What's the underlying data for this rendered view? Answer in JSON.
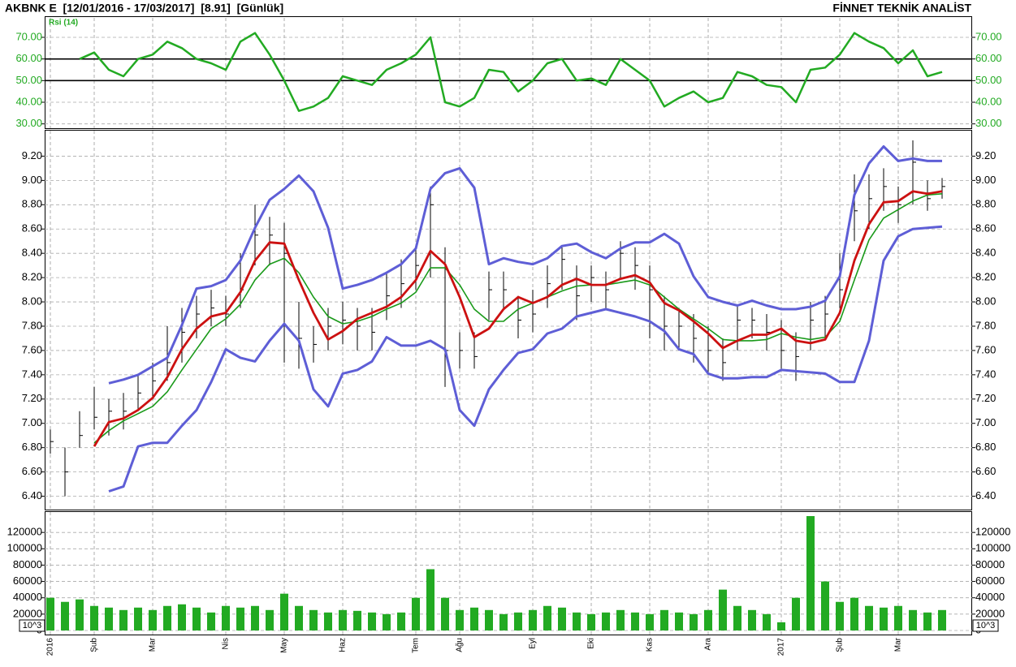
{
  "header": {
    "title": "AKBNK E  [12/01/2016 - 17/03/2017]  [8.91]  [Günlük]",
    "brand": "FİNNET TEKNİK ANALİST"
  },
  "chart_data": [
    {
      "type": "line",
      "annotation": "Rsi (14)",
      "tick_color": "#22aa22",
      "series": [
        {
          "color": "#22aa22",
          "values": [
            null,
            null,
            60,
            63,
            55,
            52,
            60,
            62,
            68,
            65,
            60,
            58,
            55,
            68,
            72,
            62,
            50,
            36,
            38,
            42,
            52,
            50,
            48,
            55,
            58,
            62,
            70,
            40,
            38,
            42,
            55,
            54,
            45,
            50,
            58,
            60,
            50,
            51,
            48,
            60,
            55,
            50,
            38,
            42,
            45,
            40,
            42,
            54,
            52,
            48,
            47,
            40,
            55,
            56,
            62,
            72,
            68,
            65,
            58,
            64,
            52,
            54
          ]
        }
      ],
      "levels": [
        60,
        50
      ],
      "ylim": [
        28,
        79
      ],
      "yticks": [
        {
          "value": 30,
          "label": "30.00"
        },
        {
          "value": 40,
          "label": "40.00"
        },
        {
          "value": 50,
          "label": "50.00"
        },
        {
          "value": 60,
          "label": "60.00"
        },
        {
          "value": 70,
          "label": "70.00"
        }
      ],
      "grid": true
    },
    {
      "type": "hlc",
      "tick_color": "#000000",
      "bar_color": "#000000",
      "high": [
        6.95,
        6.8,
        7.1,
        7.3,
        7.2,
        7.25,
        7.4,
        7.5,
        7.8,
        7.95,
        8.05,
        8.1,
        8.05,
        8.4,
        8.8,
        8.7,
        8.65,
        8.0,
        7.8,
        7.95,
        8.0,
        7.95,
        7.95,
        8.25,
        8.35,
        8.45,
        8.95,
        8.45,
        7.75,
        7.75,
        8.25,
        8.25,
        8.05,
        8.1,
        8.3,
        8.45,
        8.3,
        8.3,
        8.25,
        8.5,
        8.45,
        8.3,
        8.05,
        7.95,
        7.9,
        7.8,
        7.7,
        7.98,
        7.95,
        7.9,
        7.85,
        7.75,
        8.0,
        8.05,
        8.4,
        9.05,
        9.05,
        9.1,
        8.95,
        9.33,
        9.0,
        9.02
      ],
      "low": [
        6.75,
        6.4,
        6.8,
        6.95,
        6.9,
        6.95,
        7.1,
        7.2,
        7.35,
        7.5,
        7.7,
        7.8,
        7.8,
        7.95,
        8.3,
        8.3,
        7.5,
        7.45,
        7.5,
        7.6,
        7.65,
        7.6,
        7.6,
        7.85,
        7.95,
        8.1,
        8.2,
        7.3,
        7.45,
        7.45,
        7.85,
        7.95,
        7.7,
        7.75,
        7.95,
        8.1,
        7.85,
        8.0,
        7.95,
        8.2,
        8.1,
        7.7,
        7.6,
        7.6,
        7.5,
        7.4,
        7.35,
        7.6,
        7.7,
        7.6,
        7.45,
        7.35,
        7.6,
        7.7,
        7.95,
        8.5,
        8.6,
        8.75,
        8.65,
        8.8,
        8.75,
        8.85
      ],
      "close": [
        6.85,
        6.6,
        6.9,
        7.05,
        7.1,
        7.1,
        7.25,
        7.35,
        7.5,
        7.75,
        7.9,
        7.95,
        7.9,
        8.1,
        8.55,
        8.55,
        8.4,
        7.7,
        7.65,
        7.8,
        7.85,
        7.8,
        7.75,
        8.05,
        8.15,
        8.3,
        8.8,
        7.6,
        7.6,
        7.55,
        8.1,
        8.1,
        7.85,
        7.9,
        8.15,
        8.35,
        8.05,
        8.2,
        8.1,
        8.4,
        8.3,
        8.1,
        7.8,
        7.8,
        7.7,
        7.6,
        7.5,
        7.85,
        7.85,
        7.75,
        7.6,
        7.55,
        7.85,
        7.9,
        8.1,
        8.75,
        8.85,
        8.95,
        8.8,
        9.15,
        8.85,
        8.95
      ],
      "overlays": [
        {
          "color": "#5e5ed6",
          "values": [
            null,
            null,
            null,
            null,
            7.33,
            7.36,
            7.4,
            7.47,
            7.54,
            7.81,
            8.11,
            8.13,
            8.18,
            8.34,
            8.61,
            8.84,
            8.93,
            9.04,
            8.91,
            8.61,
            8.11,
            8.14,
            8.18,
            8.24,
            8.31,
            8.44,
            8.93,
            9.06,
            9.1,
            8.94,
            8.31,
            8.36,
            8.33,
            8.31,
            8.36,
            8.46,
            8.48,
            8.41,
            8.36,
            8.44,
            8.49,
            8.49,
            8.56,
            8.48,
            8.21,
            8.04,
            8.0,
            7.97,
            8.01,
            7.97,
            7.94,
            7.94,
            7.96,
            8.01,
            8.21,
            8.88,
            9.14,
            9.28,
            9.16,
            9.18,
            9.16,
            9.16
          ]
        },
        {
          "color": "#5e5ed6",
          "values": [
            null,
            null,
            null,
            null,
            6.44,
            6.48,
            6.81,
            6.84,
            6.84,
            6.98,
            7.11,
            7.34,
            7.61,
            7.54,
            7.51,
            7.68,
            7.82,
            7.68,
            7.28,
            7.14,
            7.41,
            7.44,
            7.51,
            7.71,
            7.64,
            7.64,
            7.68,
            7.61,
            7.11,
            6.98,
            7.28,
            7.44,
            7.58,
            7.61,
            7.74,
            7.78,
            7.88,
            7.91,
            7.94,
            7.91,
            7.88,
            7.84,
            7.76,
            7.61,
            7.57,
            7.41,
            7.37,
            7.37,
            7.38,
            7.38,
            7.44,
            7.43,
            7.42,
            7.41,
            7.34,
            7.34,
            7.68,
            8.34,
            8.54,
            8.6,
            8.61,
            8.62
          ]
        },
        {
          "color": "#1a9a1a",
          "values": [
            null,
            null,
            null,
            6.84,
            6.94,
            7.02,
            7.08,
            7.14,
            7.26,
            7.44,
            7.61,
            7.78,
            7.86,
            7.98,
            8.18,
            8.31,
            8.36,
            8.24,
            8.04,
            7.88,
            7.82,
            7.84,
            7.88,
            7.94,
            7.99,
            8.08,
            8.28,
            8.28,
            8.14,
            7.94,
            7.84,
            7.84,
            7.94,
            7.99,
            8.04,
            8.09,
            8.13,
            8.14,
            8.14,
            8.16,
            8.18,
            8.14,
            8.04,
            7.94,
            7.86,
            7.78,
            7.69,
            7.68,
            7.68,
            7.69,
            7.74,
            7.71,
            7.69,
            7.71,
            7.84,
            8.18,
            8.51,
            8.69,
            8.76,
            8.83,
            8.88,
            8.89
          ]
        },
        {
          "color": "#cc1111",
          "values": [
            null,
            null,
            null,
            6.81,
            7.01,
            7.04,
            7.11,
            7.21,
            7.38,
            7.61,
            7.78,
            7.88,
            7.91,
            8.08,
            8.34,
            8.49,
            8.48,
            8.18,
            7.91,
            7.69,
            7.76,
            7.86,
            7.91,
            7.96,
            8.04,
            8.18,
            8.42,
            8.31,
            8.04,
            7.71,
            7.78,
            7.94,
            8.04,
            7.99,
            8.04,
            8.14,
            8.19,
            8.14,
            8.14,
            8.19,
            8.22,
            8.16,
            7.99,
            7.93,
            7.84,
            7.74,
            7.62,
            7.68,
            7.73,
            7.73,
            7.78,
            7.68,
            7.66,
            7.69,
            7.91,
            8.34,
            8.64,
            8.82,
            8.83,
            8.91,
            8.89,
            8.91
          ]
        }
      ],
      "ylim": [
        6.29,
        9.41
      ],
      "yticks": [
        {
          "value": 6.4,
          "label": "6.40"
        },
        {
          "value": 6.6,
          "label": "6.60"
        },
        {
          "value": 6.8,
          "label": "6.80"
        },
        {
          "value": 7,
          "label": "7.00"
        },
        {
          "value": 7.2,
          "label": "7.20"
        },
        {
          "value": 7.4,
          "label": "7.40"
        },
        {
          "value": 7.6,
          "label": "7.60"
        },
        {
          "value": 7.8,
          "label": "7.80"
        },
        {
          "value": 8,
          "label": "8.00"
        },
        {
          "value": 8.2,
          "label": "8.20"
        },
        {
          "value": 8.4,
          "label": "8.40"
        },
        {
          "value": 8.6,
          "label": "8.60"
        },
        {
          "value": 8.8,
          "label": "8.80"
        },
        {
          "value": 9,
          "label": "9.00"
        },
        {
          "value": 9.2,
          "label": "9.20"
        }
      ],
      "grid": true
    },
    {
      "type": "bar",
      "annotation": "10^3",
      "tick_color": "#000000",
      "color": "#22aa22",
      "categories": [
        "2016",
        null,
        null,
        "Şub",
        null,
        null,
        null,
        "Mar",
        null,
        null,
        null,
        null,
        "Nis",
        null,
        null,
        null,
        "May",
        null,
        null,
        null,
        "Haz",
        null,
        null,
        null,
        null,
        "Tem",
        null,
        null,
        "Ağu",
        null,
        null,
        null,
        null,
        "Eyl",
        null,
        null,
        null,
        "Eki",
        null,
        null,
        null,
        "Kas",
        null,
        null,
        null,
        "Ara",
        null,
        null,
        null,
        null,
        "2017",
        null,
        null,
        null,
        "Şub",
        null,
        null,
        null,
        "Mar",
        null,
        null,
        null
      ],
      "values": [
        40000,
        35000,
        38000,
        30000,
        28000,
        25000,
        28000,
        25000,
        30000,
        32000,
        28000,
        22000,
        30000,
        28000,
        30000,
        25000,
        45000,
        30000,
        25000,
        22000,
        25000,
        24000,
        22000,
        20000,
        22000,
        40000,
        75000,
        40000,
        25000,
        28000,
        25000,
        20000,
        22000,
        25000,
        30000,
        28000,
        22000,
        20000,
        22000,
        25000,
        22000,
        20000,
        25000,
        22000,
        20000,
        25000,
        50000,
        30000,
        25000,
        20000,
        10000,
        40000,
        140000,
        60000,
        35000,
        40000,
        30000,
        28000,
        30000,
        25000,
        22000,
        25000
      ],
      "ylim": [
        -5000,
        145000
      ],
      "yticks": [
        0,
        20000,
        40000,
        60000,
        80000,
        100000,
        120000
      ],
      "grid": true
    }
  ]
}
